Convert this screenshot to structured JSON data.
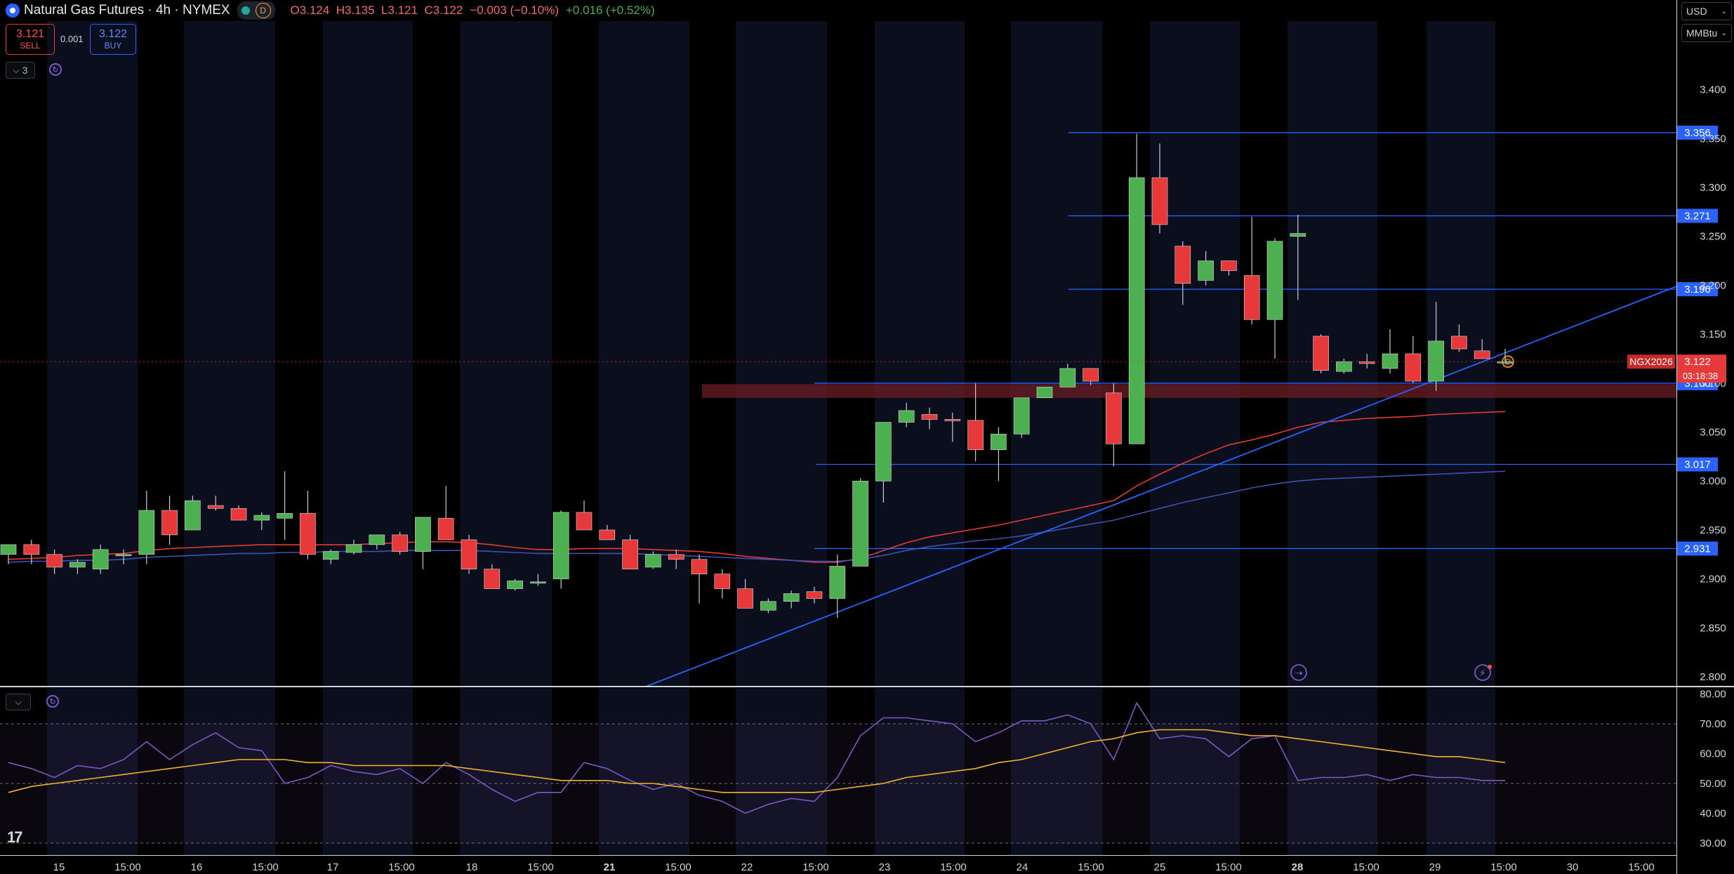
{
  "header": {
    "title": "Natural Gas Futures · 4h · NYMEX",
    "session_badge": "D",
    "open": "O3.124",
    "high": "H3.135",
    "low": "L3.121",
    "close": "C3.122",
    "change": "−0.003 (−0.10%)",
    "change_ext": "+0.016 (+0.52%)"
  },
  "trade": {
    "sell_price": "3.121",
    "sell_label": "SELL",
    "spread": "0.001",
    "buy_price": "3.122",
    "buy_label": "BUY"
  },
  "indicators_toggle": {
    "count": "3"
  },
  "currency_select": {
    "value": "USD"
  },
  "unit_select": {
    "value": "MMBtu"
  },
  "colors": {
    "up": "#4caf50",
    "down": "#e8393a",
    "hline": "#2962ff",
    "ma_fast": "#e53935",
    "ma_slow": "#3f51b5",
    "rsi": "#7e57c2",
    "rsi_ma": "#f0b429",
    "zone": "#6b1d24"
  },
  "chart_data": [
    {
      "type": "candlestick",
      "symbol_label": "NGX2026",
      "last_price": "3.122",
      "countdown": "03:18:38",
      "ylim": [
        2.79,
        3.47
      ],
      "y_ticks": [
        "3.400",
        "3.350",
        "3.300",
        "3.250",
        "3.200",
        "3.150",
        "3.100",
        "3.050",
        "3.000",
        "2.950",
        "2.900",
        "2.850",
        "2.800"
      ],
      "x_ticks": [
        "15",
        "15:00",
        "16",
        "15:00",
        "17",
        "15:00",
        "18",
        "15:00",
        "21",
        "15:00",
        "22",
        "15:00",
        "23",
        "15:00",
        "24",
        "15:00",
        "25",
        "15:00",
        "28",
        "15:00",
        "29",
        "15:00",
        "30",
        "15:00"
      ],
      "x_tick_bold": [
        false,
        false,
        false,
        false,
        false,
        false,
        false,
        false,
        true,
        false,
        false,
        false,
        false,
        false,
        false,
        false,
        false,
        false,
        true,
        false,
        false,
        false,
        false,
        false
      ],
      "horizontal_levels": [
        "3.356",
        "3.271",
        "3.196",
        "3.100",
        "3.017",
        "2.931"
      ],
      "resistance_zone": [
        3.085,
        3.099
      ],
      "candles_ohlc": [
        [
          2.925,
          2.935,
          2.915,
          2.935
        ],
        [
          2.935,
          2.94,
          2.915,
          2.925
        ],
        [
          2.925,
          2.93,
          2.905,
          2.912
        ],
        [
          2.912,
          2.92,
          2.905,
          2.917
        ],
        [
          2.91,
          2.935,
          2.905,
          2.93
        ],
        [
          2.925,
          2.93,
          2.915,
          2.925
        ],
        [
          2.925,
          2.99,
          2.915,
          2.97
        ],
        [
          2.97,
          2.985,
          2.935,
          2.945
        ],
        [
          2.95,
          2.985,
          2.95,
          2.98
        ],
        [
          2.975,
          2.985,
          2.97,
          2.972
        ],
        [
          2.972,
          2.975,
          2.96,
          2.96
        ],
        [
          2.96,
          2.968,
          2.95,
          2.965
        ],
        [
          2.962,
          3.01,
          2.94,
          2.967
        ],
        [
          2.967,
          2.99,
          2.92,
          2.925
        ],
        [
          2.92,
          2.93,
          2.915,
          2.928
        ],
        [
          2.927,
          2.94,
          2.925,
          2.935
        ],
        [
          2.935,
          2.945,
          2.93,
          2.945
        ],
        [
          2.945,
          2.948,
          2.925,
          2.928
        ],
        [
          2.928,
          2.963,
          2.91,
          2.963
        ],
        [
          2.962,
          2.995,
          2.94,
          2.94
        ],
        [
          2.94,
          2.945,
          2.905,
          2.91
        ],
        [
          2.91,
          2.915,
          2.89,
          2.89
        ],
        [
          2.89,
          2.9,
          2.888,
          2.898
        ],
        [
          2.897,
          2.905,
          2.893,
          2.897
        ],
        [
          2.9,
          2.97,
          2.89,
          2.968
        ],
        [
          2.968,
          2.98,
          2.95,
          2.95
        ],
        [
          2.95,
          2.955,
          2.94,
          2.94
        ],
        [
          2.94,
          2.945,
          2.915,
          2.91
        ],
        [
          2.912,
          2.928,
          2.91,
          2.925
        ],
        [
          2.925,
          2.93,
          2.91,
          2.92
        ],
        [
          2.92,
          2.925,
          2.875,
          2.905
        ],
        [
          2.905,
          2.91,
          2.88,
          2.89
        ],
        [
          2.89,
          2.9,
          2.87,
          2.87
        ],
        [
          2.868,
          2.88,
          2.865,
          2.877
        ],
        [
          2.877,
          2.888,
          2.87,
          2.885
        ],
        [
          2.887,
          2.892,
          2.875,
          2.88
        ],
        [
          2.88,
          2.925,
          2.86,
          2.913
        ],
        [
          2.913,
          3.003,
          2.913,
          3.0
        ],
        [
          3.0,
          3.055,
          2.978,
          3.06
        ],
        [
          3.06,
          3.08,
          3.055,
          3.072
        ],
        [
          3.068,
          3.075,
          3.053,
          3.063
        ],
        [
          3.063,
          3.07,
          3.04,
          3.062
        ],
        [
          3.062,
          3.1,
          3.02,
          3.032
        ],
        [
          3.032,
          3.055,
          3.0,
          3.048
        ],
        [
          3.048,
          3.085,
          3.044,
          3.085
        ],
        [
          3.085,
          3.09,
          3.085,
          3.096
        ],
        [
          3.096,
          3.12,
          3.096,
          3.115
        ],
        [
          3.115,
          3.115,
          3.098,
          3.102
        ],
        [
          3.09,
          3.1,
          3.015,
          3.038
        ],
        [
          3.038,
          3.355,
          3.038,
          3.31
        ],
        [
          3.31,
          3.345,
          3.253,
          3.262
        ],
        [
          3.24,
          3.245,
          3.18,
          3.202
        ],
        [
          3.205,
          3.235,
          3.2,
          3.225
        ],
        [
          3.225,
          3.225,
          3.21,
          3.215
        ],
        [
          3.21,
          3.27,
          3.16,
          3.165
        ],
        [
          3.165,
          3.248,
          3.125,
          3.245
        ],
        [
          3.25,
          3.272,
          3.185,
          3.253
        ],
        [
          3.148,
          3.15,
          3.11,
          3.113
        ],
        [
          3.112,
          3.125,
          3.11,
          3.122
        ],
        [
          3.122,
          3.13,
          3.115,
          3.12
        ],
        [
          3.115,
          3.155,
          3.11,
          3.13
        ],
        [
          3.13,
          3.148,
          3.1,
          3.102
        ],
        [
          3.102,
          3.183,
          3.092,
          3.143
        ],
        [
          3.148,
          3.16,
          3.132,
          3.135
        ],
        [
          3.133,
          3.145,
          3.125,
          3.125
        ],
        [
          3.122,
          3.135,
          3.121,
          3.122
        ]
      ],
      "moving_averages": [
        {
          "name": "fast",
          "values": [
            2.92,
            2.921,
            2.922,
            2.924,
            2.925,
            2.926,
            2.929,
            2.931,
            2.932,
            2.933,
            2.934,
            2.935,
            2.935,
            2.935,
            2.935,
            2.935,
            2.936,
            2.937,
            2.938,
            2.938,
            2.937,
            2.935,
            2.932,
            2.93,
            2.93,
            2.931,
            2.931,
            2.931,
            2.93,
            2.929,
            2.928,
            2.926,
            2.923,
            2.921,
            2.919,
            2.917,
            2.917,
            2.921,
            2.929,
            2.937,
            2.943,
            2.947,
            2.951,
            2.955,
            2.96,
            2.965,
            2.97,
            2.975,
            2.98,
            2.995,
            3.007,
            3.018,
            3.028,
            3.037,
            3.042,
            3.048,
            3.055,
            3.06,
            3.062,
            3.064,
            3.065,
            3.066,
            3.068,
            3.069,
            3.07,
            3.071
          ]
        },
        {
          "name": "slow",
          "values": [
            2.917,
            2.918,
            2.918,
            2.919,
            2.919,
            2.92,
            2.922,
            2.923,
            2.924,
            2.925,
            2.926,
            2.926,
            2.927,
            2.927,
            2.928,
            2.928,
            2.928,
            2.929,
            2.929,
            2.929,
            2.929,
            2.928,
            2.927,
            2.926,
            2.926,
            2.926,
            2.926,
            2.926,
            2.925,
            2.924,
            2.923,
            2.922,
            2.921,
            2.92,
            2.919,
            2.918,
            2.918,
            2.92,
            2.924,
            2.929,
            2.933,
            2.936,
            2.939,
            2.941,
            2.944,
            2.948,
            2.952,
            2.956,
            2.96,
            2.966,
            2.972,
            2.978,
            2.983,
            2.988,
            2.993,
            2.997,
            3.0,
            3.002,
            3.003,
            3.004,
            3.005,
            3.006,
            3.007,
            3.008,
            3.009,
            3.01
          ]
        }
      ]
    },
    {
      "type": "line",
      "name": "RSI",
      "ylim": [
        26,
        82
      ],
      "y_ticks": [
        "80.00",
        "70.00",
        "60.00",
        "50.00",
        "40.00",
        "30.00"
      ],
      "bands": [
        70,
        50
      ],
      "series": [
        {
          "name": "rsi",
          "values": [
            57,
            55,
            52,
            56,
            55,
            58,
            64,
            58,
            63,
            67,
            62,
            61,
            50,
            52,
            56,
            54,
            53,
            55,
            50,
            57,
            53,
            48,
            44,
            47,
            47,
            57,
            55,
            51,
            48,
            50,
            46,
            44,
            40,
            43,
            45,
            44,
            52,
            66,
            72,
            72,
            71,
            70,
            64,
            67,
            71,
            71,
            73,
            70,
            58,
            77,
            65,
            66,
            65,
            59,
            65,
            66,
            51,
            52,
            52,
            53,
            51,
            53,
            52,
            52,
            51,
            51
          ]
        },
        {
          "name": "rsi_ma",
          "values": [
            47,
            49,
            50,
            51,
            52,
            53,
            54,
            55,
            56,
            57,
            58,
            58,
            58,
            57,
            57,
            56,
            56,
            56,
            56,
            56,
            55,
            54,
            53,
            52,
            51,
            51,
            51,
            50,
            50,
            49,
            48,
            47,
            47,
            47,
            47,
            47,
            48,
            49,
            50,
            52,
            53,
            54,
            55,
            57,
            58,
            60,
            62,
            64,
            65,
            67,
            68,
            68,
            68,
            67,
            66,
            66,
            65,
            64,
            63,
            62,
            61,
            60,
            59,
            59,
            58,
            57
          ]
        }
      ]
    }
  ]
}
